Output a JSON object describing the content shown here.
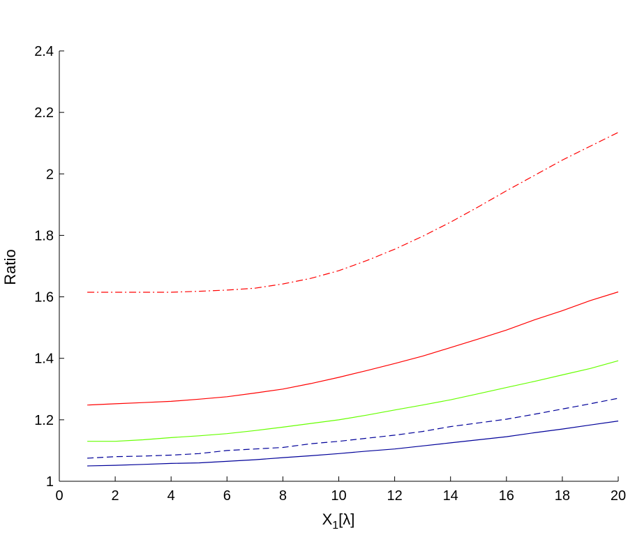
{
  "chart_data": {
    "type": "line",
    "title": "",
    "xlabel": "X",
    "xlabel_subscript": "1",
    "xlabel_suffix": "[λ]",
    "ylabel": "Ratio",
    "xlim": [
      0,
      20
    ],
    "ylim": [
      1,
      2.4
    ],
    "x_ticks": [
      0,
      2,
      4,
      6,
      8,
      10,
      12,
      14,
      16,
      18,
      20
    ],
    "y_ticks": [
      1,
      1.2,
      1.4,
      1.6,
      1.8,
      2,
      2.2,
      2.4
    ],
    "x_tick_labels": [
      "0",
      "2",
      "4",
      "6",
      "8",
      "10",
      "12",
      "14",
      "16",
      "18",
      "20"
    ],
    "y_tick_labels": [
      "1",
      "1.2",
      "1.4",
      "1.6",
      "1.8",
      "2",
      "2.2",
      "2.4"
    ],
    "grid": false,
    "x": [
      1,
      2,
      3,
      4,
      5,
      6,
      7,
      8,
      9,
      10,
      11,
      12,
      13,
      14,
      15,
      16,
      17,
      18,
      19,
      20
    ],
    "series": [
      {
        "color": "#ff0000",
        "style": "dashdot",
        "values": [
          1.615,
          1.615,
          1.615,
          1.615,
          1.618,
          1.622,
          1.628,
          1.642,
          1.66,
          1.685,
          1.718,
          1.755,
          1.797,
          1.843,
          1.893,
          1.945,
          1.995,
          2.045,
          2.09,
          2.135
        ]
      },
      {
        "color": "#ff0000",
        "style": "solid",
        "values": [
          1.248,
          1.252,
          1.256,
          1.26,
          1.267,
          1.275,
          1.287,
          1.3,
          1.318,
          1.338,
          1.36,
          1.383,
          1.407,
          1.435,
          1.463,
          1.492,
          1.525,
          1.555,
          1.588,
          1.616
        ]
      },
      {
        "color": "#66ff00",
        "style": "solid",
        "values": [
          1.13,
          1.13,
          1.135,
          1.142,
          1.148,
          1.155,
          1.165,
          1.176,
          1.188,
          1.2,
          1.215,
          1.232,
          1.248,
          1.265,
          1.285,
          1.305,
          1.325,
          1.346,
          1.367,
          1.392
        ]
      },
      {
        "color": "#000099",
        "style": "dashed",
        "values": [
          1.075,
          1.08,
          1.082,
          1.085,
          1.09,
          1.1,
          1.105,
          1.11,
          1.122,
          1.13,
          1.14,
          1.15,
          1.162,
          1.178,
          1.19,
          1.202,
          1.218,
          1.235,
          1.252,
          1.27
        ]
      },
      {
        "color": "#000099",
        "style": "solid",
        "values": [
          1.05,
          1.052,
          1.055,
          1.058,
          1.06,
          1.065,
          1.07,
          1.077,
          1.083,
          1.09,
          1.098,
          1.105,
          1.115,
          1.125,
          1.135,
          1.145,
          1.158,
          1.17,
          1.183,
          1.196
        ]
      }
    ]
  }
}
